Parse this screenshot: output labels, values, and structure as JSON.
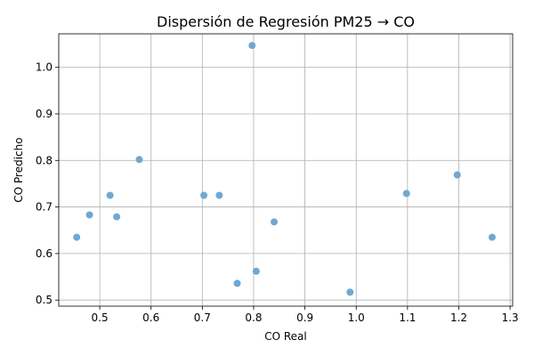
{
  "chart_data": {
    "type": "scatter",
    "title": "Dispersión de Regresión PM25 → CO",
    "xlabel": "CO Real",
    "ylabel": "CO Predicho",
    "xlim": [
      0.42,
      1.305
    ],
    "ylim": [
      0.487,
      1.072
    ],
    "xticks": [
      "0.5",
      "0.6",
      "0.7",
      "0.8",
      "0.9",
      "1.0",
      "1.1",
      "1.2",
      "1.3"
    ],
    "yticks": [
      "0.5",
      "0.6",
      "0.7",
      "0.8",
      "0.9",
      "1.0"
    ],
    "grid": true,
    "point_color": "#6fa8d2",
    "points": [
      {
        "x": 0.455,
        "y": 0.635
      },
      {
        "x": 0.48,
        "y": 0.683
      },
      {
        "x": 0.52,
        "y": 0.725
      },
      {
        "x": 0.533,
        "y": 0.679
      },
      {
        "x": 0.577,
        "y": 0.802
      },
      {
        "x": 0.703,
        "y": 0.725
      },
      {
        "x": 0.733,
        "y": 0.725
      },
      {
        "x": 0.768,
        "y": 0.536
      },
      {
        "x": 0.797,
        "y": 1.047
      },
      {
        "x": 0.805,
        "y": 0.562
      },
      {
        "x": 0.84,
        "y": 0.668
      },
      {
        "x": 0.988,
        "y": 0.517
      },
      {
        "x": 1.098,
        "y": 0.729
      },
      {
        "x": 1.197,
        "y": 0.769
      },
      {
        "x": 1.265,
        "y": 0.635
      }
    ]
  }
}
